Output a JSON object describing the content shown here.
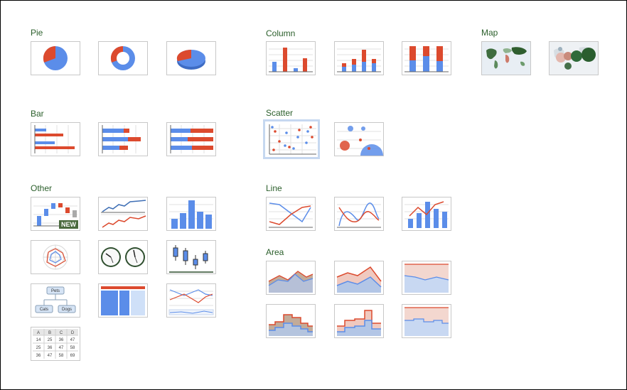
{
  "categories": {
    "pie": "Pie",
    "column": "Column",
    "map": "Map",
    "bar": "Bar",
    "scatter": "Scatter",
    "other": "Other",
    "line": "Line",
    "area": "Area"
  },
  "badges": {
    "new": "NEW"
  },
  "org_chart": {
    "top": "Pets",
    "left": "Cats",
    "right": "Dogs"
  },
  "table_chart": {
    "headers": [
      "A",
      "B",
      "C",
      "D"
    ],
    "rows": [
      [
        "14",
        "25",
        "36",
        "47"
      ],
      [
        "25",
        "36",
        "47",
        "58"
      ],
      [
        "36",
        "47",
        "58",
        "69"
      ]
    ]
  },
  "colors": {
    "blue": "#5b8de9",
    "red": "#dc4a2e",
    "label": "#2b5f2b",
    "selected_border": "#c6d8f0"
  }
}
